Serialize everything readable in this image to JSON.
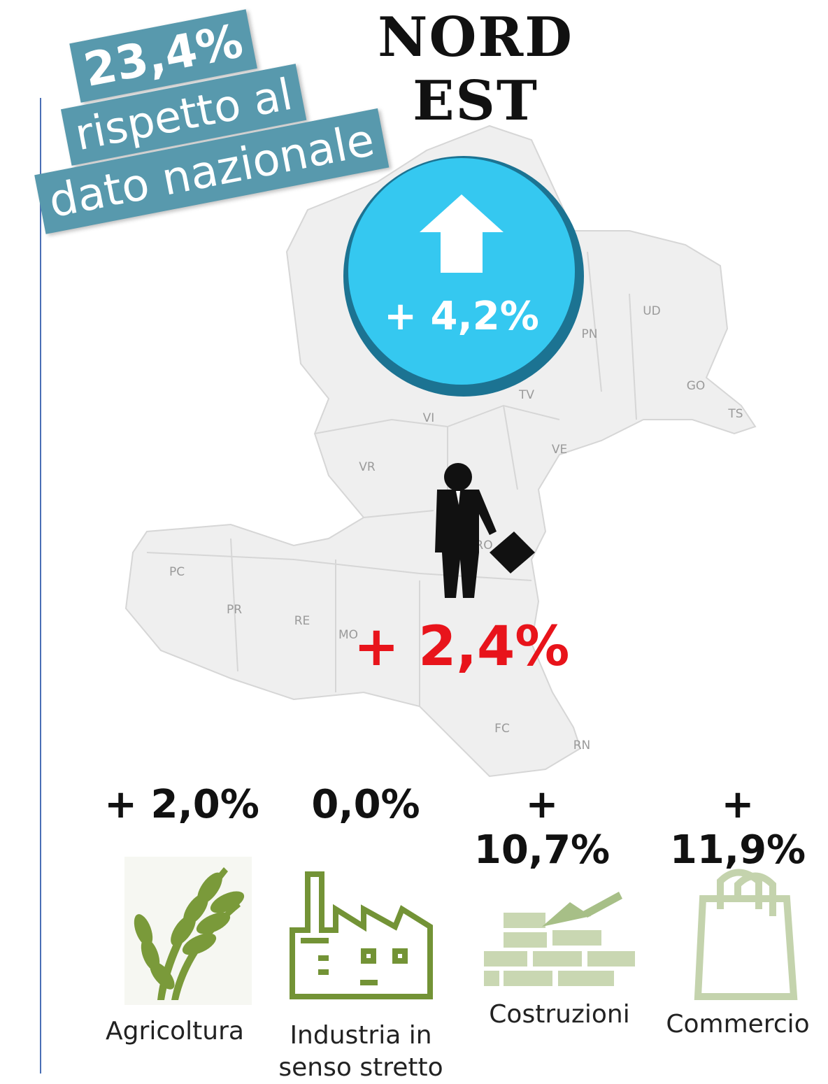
{
  "title": "NORD EST",
  "badge": {
    "lines": [
      "23,4%",
      "rispetto al",
      "dato nazionale"
    ]
  },
  "headline_change": "+ 4,2%",
  "region_change": "+ 2,4%",
  "map_labels": [
    "UD",
    "PN",
    "GO",
    "TS",
    "TV",
    "VI",
    "VE",
    "VR",
    "RO",
    "PC",
    "PR",
    "RE",
    "MO",
    "FC",
    "RN"
  ],
  "sectors": [
    {
      "value": "+ 2,0%",
      "label": [
        "Agricoltura"
      ]
    },
    {
      "value": "0,0%",
      "label": [
        "Industria in",
        "senso stretto"
      ]
    },
    {
      "value": "+ 10,7%",
      "label": [
        "Costruzioni"
      ]
    },
    {
      "value": "+ 11,9%",
      "label": [
        "Commercio"
      ]
    }
  ]
}
